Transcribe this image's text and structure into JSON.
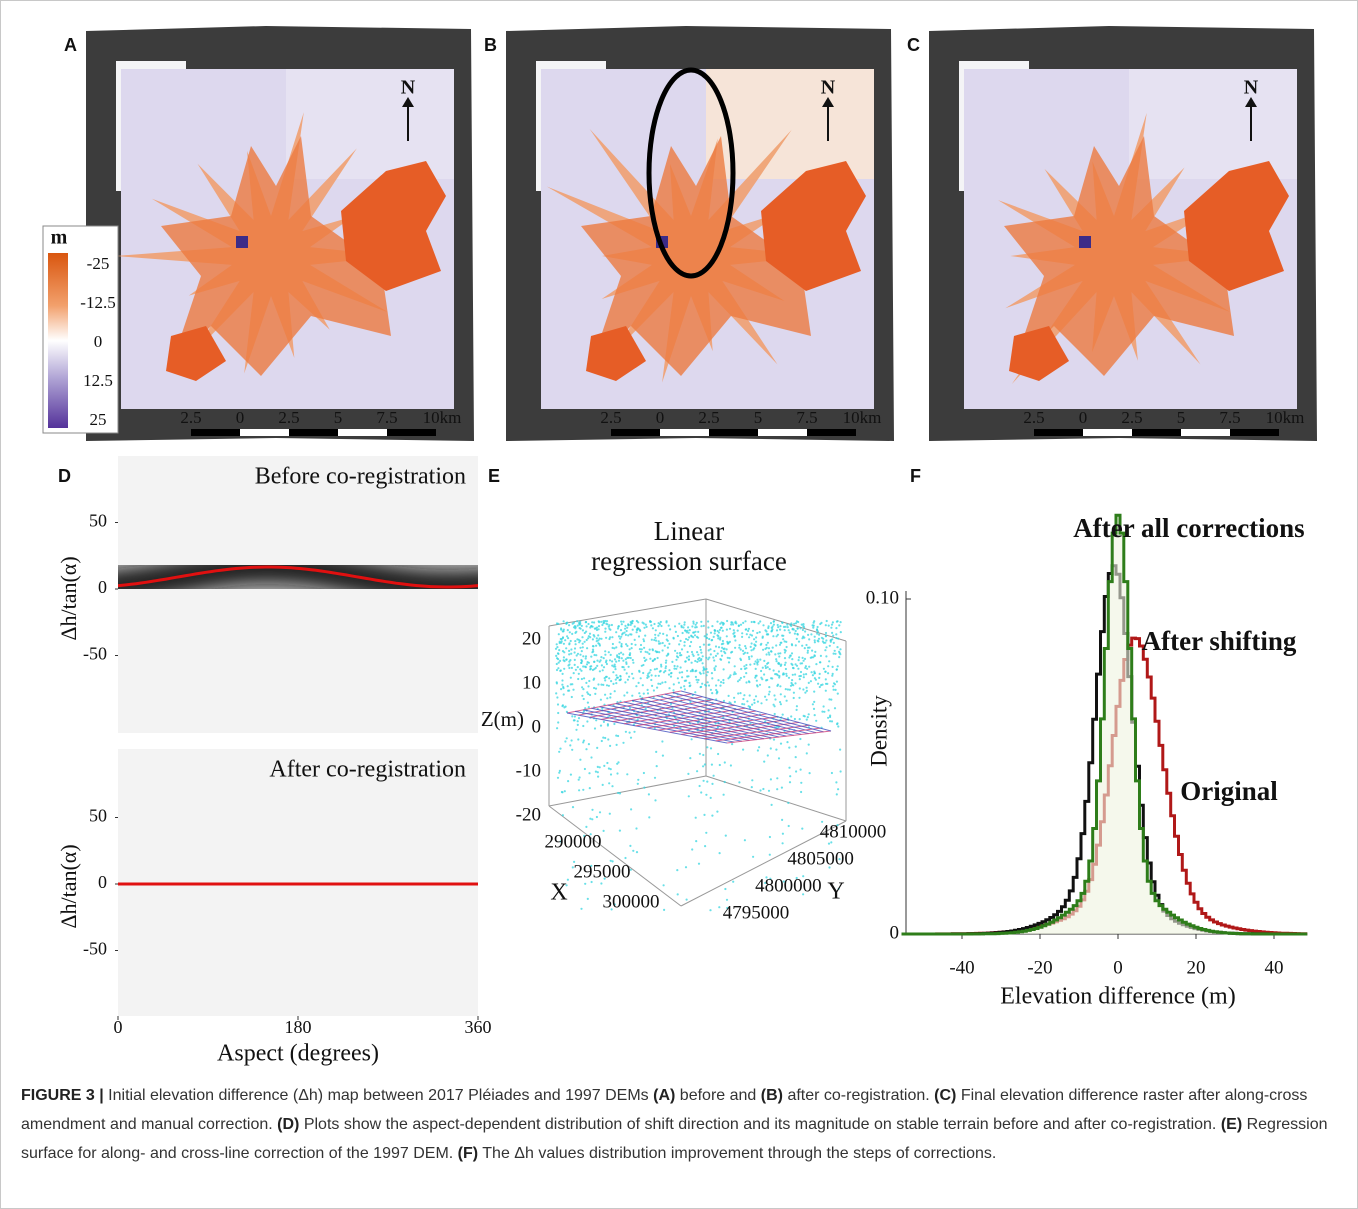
{
  "maps": [
    {
      "label": "A",
      "north": "N",
      "scale": [
        "2.5",
        "0",
        "2.5",
        "5",
        "7.5",
        "10km"
      ]
    },
    {
      "label": "B",
      "north": "N",
      "scale": [
        "2.5",
        "0",
        "2.5",
        "5",
        "7.5",
        "10km"
      ]
    },
    {
      "label": "C",
      "north": "N",
      "scale": [
        "2.5",
        "0",
        "2.5",
        "5",
        "7.5",
        "10km"
      ]
    }
  ],
  "colorbar": {
    "unit": "m",
    "ticks": [
      "-25",
      "-12.5",
      "0",
      "12.5",
      "25"
    ]
  },
  "panel_d": {
    "label": "D",
    "plots": [
      {
        "title": "Before co-registration",
        "ylabel": "Δh/tan(α)",
        "yticks": [
          50,
          0,
          -50
        ]
      },
      {
        "title": "After co-registration",
        "ylabel": "Δh/tan(α)",
        "yticks": [
          50,
          0,
          -50
        ]
      }
    ],
    "xticks": [
      0,
      180,
      360
    ],
    "xlabel": "Aspect (degrees)"
  },
  "panel_e": {
    "label": "E",
    "title": [
      "Linear",
      "regression surface"
    ],
    "zlabel": "Z(m)",
    "zticks": [
      20,
      10,
      0,
      -10,
      -20
    ],
    "xlabel": "X",
    "xticks": [
      290000,
      295000,
      300000
    ],
    "ylabel": "Y",
    "yticks": [
      4810000,
      4805000,
      4800000,
      4795000
    ]
  },
  "panel_f": {
    "label": "F",
    "series": [
      {
        "name": "After all corrections",
        "color": "#2e7d1a"
      },
      {
        "name": "After shifting",
        "color": "#111111"
      },
      {
        "name": "Original",
        "color": "#b01818"
      }
    ],
    "ylabel": "Density",
    "yticks": [
      {
        "value": 0.1,
        "label": "0.10"
      },
      0
    ],
    "xticks": [
      -40,
      -20,
      0,
      20,
      40
    ],
    "xlabel": "Elevation difference (m)"
  },
  "caption": [
    {
      "text": "FIGURE 3 |",
      "bold": true
    },
    {
      "text": "Initial elevation difference (Δh) map between 2017 Pléiades and 1997 DEMs",
      "bold": false
    },
    {
      "text": "(A)",
      "bold": true
    },
    {
      "text": "before and",
      "bold": false
    },
    {
      "text": "(B)",
      "bold": true
    },
    {
      "text": "after co-registration.",
      "bold": false
    },
    {
      "text": "(C)",
      "bold": true
    },
    {
      "text": "Final elevation difference raster after along-cross amendment and manual correction.",
      "bold": false
    },
    {
      "text": "(D)",
      "bold": true
    },
    {
      "text": "Plots show the aspect-dependent distribution of shift direction and its magnitude on stable terrain before and after co-registration.",
      "bold": false
    },
    {
      "text": "(E)",
      "bold": true
    },
    {
      "text": "Regression surface for along- and cross-line correction of the 1997 DEM.",
      "bold": false
    },
    {
      "text": "(F)",
      "bold": true
    },
    {
      "text": "The Δh values distribution improvement through the steps of corrections.",
      "bold": false
    }
  ]
}
